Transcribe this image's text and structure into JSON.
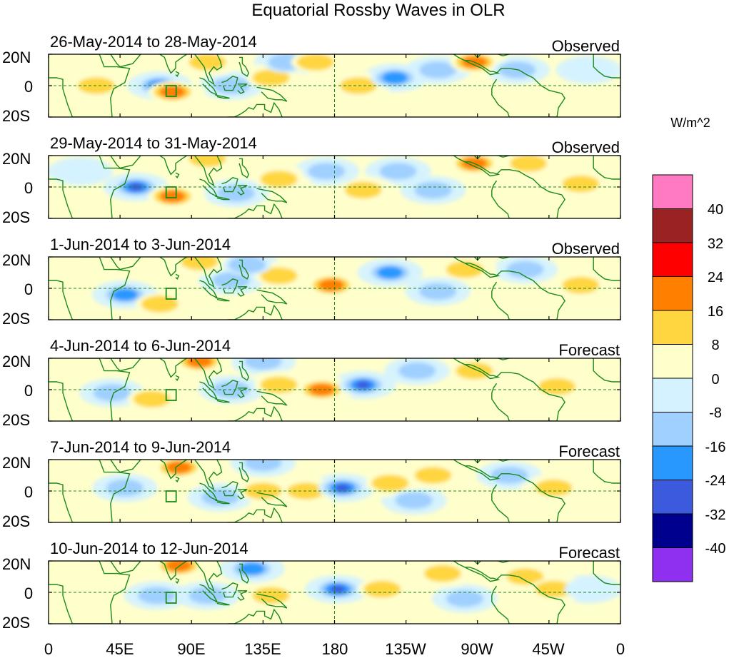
{
  "title": "Equatorial Rossby Waves in OLR",
  "unit": "W/m^2",
  "lat_labels": [
    "20N",
    "0",
    "20S"
  ],
  "lon_labels": [
    "0",
    "45E",
    "90E",
    "135E",
    "180",
    "135W",
    "90W",
    "45W",
    "0"
  ],
  "colorbar": {
    "levels": [
      "40",
      "32",
      "24",
      "16",
      "8",
      "0",
      "-8",
      "-16",
      "-24",
      "-32",
      "-40"
    ],
    "colors": [
      "#ff7ac0",
      "#9b2222",
      "#ff0000",
      "#ff7f00",
      "#ffd640",
      "#ffffcc",
      "#d4f2ff",
      "#a0d0ff",
      "#2898ff",
      "#3c5ade",
      "#00008f",
      "#8f2ff0"
    ]
  },
  "panels": [
    {
      "date_range": "26-May-2014 to 28-May-2014",
      "status": "Observed",
      "anomalies": [
        {
          "lon": 70,
          "lat": 0,
          "v": -24
        },
        {
          "lon": 78,
          "lat": -4,
          "v": 24
        },
        {
          "lon": 100,
          "lat": 15,
          "v": 16
        },
        {
          "lon": 115,
          "lat": 0,
          "v": -16
        },
        {
          "lon": 140,
          "lat": 5,
          "v": 16
        },
        {
          "lon": 150,
          "lat": 15,
          "v": -16
        },
        {
          "lon": 168,
          "lat": 15,
          "v": 16
        },
        {
          "lon": 195,
          "lat": 0,
          "v": 16
        },
        {
          "lon": 218,
          "lat": 5,
          "v": -24
        },
        {
          "lon": 245,
          "lat": 10,
          "v": -16
        },
        {
          "lon": 268,
          "lat": 15,
          "v": 24
        },
        {
          "lon": 295,
          "lat": 10,
          "v": -16
        },
        {
          "lon": 30,
          "lat": 0,
          "v": 16
        },
        {
          "lon": 340,
          "lat": 10,
          "v": -8
        }
      ]
    },
    {
      "date_range": "29-May-2014 to 31-May-2014",
      "status": "Observed",
      "anomalies": [
        {
          "lon": 55,
          "lat": 0,
          "v": -32
        },
        {
          "lon": 78,
          "lat": -6,
          "v": 24
        },
        {
          "lon": 100,
          "lat": 18,
          "v": 16
        },
        {
          "lon": 118,
          "lat": -4,
          "v": -16
        },
        {
          "lon": 145,
          "lat": 5,
          "v": 16
        },
        {
          "lon": 175,
          "lat": 10,
          "v": -16
        },
        {
          "lon": 198,
          "lat": -2,
          "v": 16
        },
        {
          "lon": 220,
          "lat": 10,
          "v": -16
        },
        {
          "lon": 268,
          "lat": 15,
          "v": 24
        },
        {
          "lon": 242,
          "lat": -2,
          "v": -16
        },
        {
          "lon": 302,
          "lat": 15,
          "v": 16
        },
        {
          "lon": 335,
          "lat": 2,
          "v": 16
        },
        {
          "lon": 20,
          "lat": 10,
          "v": -8
        }
      ]
    },
    {
      "date_range": "1-Jun-2014 to 3-Jun-2014",
      "status": "Observed",
      "anomalies": [
        {
          "lon": 48,
          "lat": -4,
          "v": -24
        },
        {
          "lon": 70,
          "lat": -10,
          "v": 16
        },
        {
          "lon": 95,
          "lat": 17,
          "v": 16
        },
        {
          "lon": 115,
          "lat": 5,
          "v": -16
        },
        {
          "lon": 145,
          "lat": 8,
          "v": 16
        },
        {
          "lon": 178,
          "lat": 2,
          "v": 24
        },
        {
          "lon": 215,
          "lat": 10,
          "v": -24
        },
        {
          "lon": 245,
          "lat": -2,
          "v": -16
        },
        {
          "lon": 262,
          "lat": 12,
          "v": 16
        },
        {
          "lon": 300,
          "lat": 12,
          "v": -16
        },
        {
          "lon": 335,
          "lat": 2,
          "v": 16
        },
        {
          "lon": 125,
          "lat": 15,
          "v": -16
        }
      ]
    },
    {
      "date_range": "4-Jun-2014 to 6-Jun-2014",
      "status": "Forecast",
      "anomalies": [
        {
          "lon": 40,
          "lat": -2,
          "v": -16
        },
        {
          "lon": 65,
          "lat": -6,
          "v": 16
        },
        {
          "lon": 95,
          "lat": 18,
          "v": 24
        },
        {
          "lon": 115,
          "lat": 0,
          "v": -16
        },
        {
          "lon": 145,
          "lat": 3,
          "v": 16
        },
        {
          "lon": 172,
          "lat": 0,
          "v": 24
        },
        {
          "lon": 198,
          "lat": 3,
          "v": -32
        },
        {
          "lon": 232,
          "lat": 12,
          "v": -16
        },
        {
          "lon": 268,
          "lat": 12,
          "v": 16
        },
        {
          "lon": 320,
          "lat": 2,
          "v": 16
        },
        {
          "lon": 135,
          "lat": 18,
          "v": -16
        }
      ]
    },
    {
      "date_range": "7-Jun-2014 to 9-Jun-2014",
      "status": "Forecast",
      "anomalies": [
        {
          "lon": 48,
          "lat": 2,
          "v": -16
        },
        {
          "lon": 82,
          "lat": 15,
          "v": 24
        },
        {
          "lon": 108,
          "lat": -4,
          "v": -16
        },
        {
          "lon": 135,
          "lat": 0,
          "v": 16
        },
        {
          "lon": 162,
          "lat": 0,
          "v": 16
        },
        {
          "lon": 185,
          "lat": 2,
          "v": -32
        },
        {
          "lon": 215,
          "lat": 5,
          "v": 16
        },
        {
          "lon": 242,
          "lat": 10,
          "v": 16
        },
        {
          "lon": 230,
          "lat": -6,
          "v": -16
        },
        {
          "lon": 318,
          "lat": 2,
          "v": 16
        },
        {
          "lon": 290,
          "lat": 10,
          "v": -16
        },
        {
          "lon": 135,
          "lat": 18,
          "v": -16
        }
      ]
    },
    {
      "date_range": "10-Jun-2014 to 12-Jun-2014",
      "status": "Forecast",
      "anomalies": [
        {
          "lon": 68,
          "lat": -2,
          "v": -16
        },
        {
          "lon": 82,
          "lat": 17,
          "v": 24
        },
        {
          "lon": 100,
          "lat": -2,
          "v": -16
        },
        {
          "lon": 128,
          "lat": 15,
          "v": -24
        },
        {
          "lon": 140,
          "lat": -2,
          "v": 16
        },
        {
          "lon": 182,
          "lat": 2,
          "v": -32
        },
        {
          "lon": 210,
          "lat": 2,
          "v": 16
        },
        {
          "lon": 248,
          "lat": 12,
          "v": 16
        },
        {
          "lon": 262,
          "lat": -4,
          "v": -16
        },
        {
          "lon": 300,
          "lat": 10,
          "v": 16
        },
        {
          "lon": 318,
          "lat": 2,
          "v": 16
        },
        {
          "lon": 340,
          "lat": 2,
          "v": -8
        }
      ]
    }
  ]
}
